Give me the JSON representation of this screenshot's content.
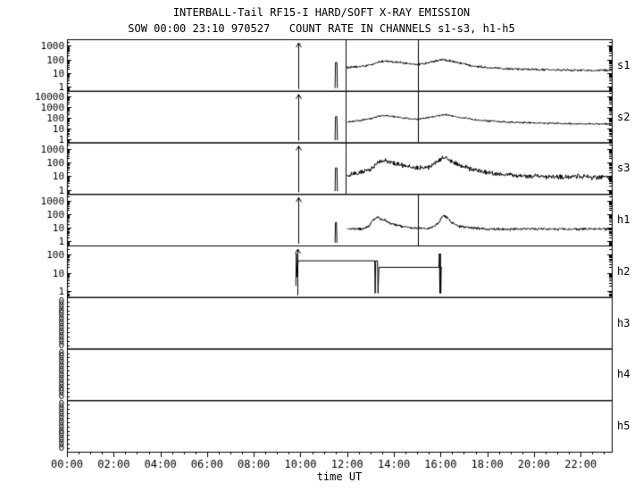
{
  "chart_data": {
    "type": "line",
    "title": "INTERBALL-Tail RF15-I HARD/SOFT X-RAY EMISSION",
    "subtitle": "SOW 00:00 23:10 970527   COUNT RATE IN CHANNELS s1-s3, h1-h5",
    "xlabel": "time UT",
    "ylabel": "COUNT RATE",
    "grid": false,
    "legend": "right-edge panel labels",
    "x_range": [
      0,
      23.33
    ],
    "x_minor_step": 0.5,
    "x_major_ticks": [
      0,
      2,
      4,
      6,
      8,
      10,
      12,
      14,
      16,
      18,
      20,
      22
    ],
    "x_tick_labels": [
      "00:00",
      "02:00",
      "04:00",
      "06:00",
      "08:00",
      "10:00",
      "12:00",
      "14:00",
      "16:00",
      "18:00",
      "20:00",
      "22:00"
    ],
    "trace_color": "#000000",
    "background_color": "#ffffff",
    "panels": [
      {
        "label": "s1",
        "scale": "log",
        "ylim": [
          0.5,
          3000
        ],
        "yticks": [
          1,
          10,
          100,
          1000
        ],
        "noise": 0.1,
        "arrow_spikes": [
          9.9
        ],
        "vlines": [
          11.93,
          15.03
        ],
        "segments": [
          {
            "noisy": false,
            "points": [
              [
                11.48,
                0.8
              ],
              [
                11.5,
                60
              ],
              [
                11.56,
                60
              ],
              [
                11.58,
                0.8
              ]
            ]
          },
          {
            "noisy": true,
            "points": [
              [
                12.0,
                25
              ],
              [
                12.4,
                28
              ],
              [
                12.8,
                33
              ],
              [
                13.1,
                45
              ],
              [
                13.4,
                70
              ],
              [
                13.7,
                75
              ],
              [
                14.0,
                65
              ],
              [
                14.5,
                52
              ],
              [
                15.0,
                42
              ],
              [
                15.4,
                55
              ],
              [
                15.8,
                75
              ],
              [
                16.1,
                100
              ],
              [
                16.4,
                80
              ],
              [
                16.8,
                55
              ],
              [
                17.2,
                40
              ],
              [
                17.6,
                30
              ],
              [
                18.0,
                26
              ],
              [
                18.5,
                23
              ],
              [
                19.0,
                21
              ],
              [
                20.0,
                18
              ],
              [
                21.0,
                17
              ],
              [
                22.0,
                16
              ],
              [
                23.3,
                16
              ]
            ]
          }
        ]
      },
      {
        "label": "s2",
        "scale": "log",
        "ylim": [
          0.5,
          30000
        ],
        "yticks": [
          1,
          10,
          100,
          1000,
          10000
        ],
        "noise": 0.1,
        "arrow_spikes": [
          9.9
        ],
        "vlines": [
          11.93,
          15.03
        ],
        "segments": [
          {
            "noisy": false,
            "points": [
              [
                11.48,
                0.8
              ],
              [
                11.5,
                120
              ],
              [
                11.56,
                120
              ],
              [
                11.58,
                0.8
              ]
            ]
          },
          {
            "noisy": true,
            "points": [
              [
                12.0,
                40
              ],
              [
                12.5,
                50
              ],
              [
                13.0,
                80
              ],
              [
                13.4,
                140
              ],
              [
                13.7,
                150
              ],
              [
                14.0,
                120
              ],
              [
                14.5,
                90
              ],
              [
                15.0,
                70
              ],
              [
                15.4,
                90
              ],
              [
                15.9,
                150
              ],
              [
                16.2,
                190
              ],
              [
                16.5,
                140
              ],
              [
                17.0,
                90
              ],
              [
                17.5,
                62
              ],
              [
                18.0,
                48
              ],
              [
                19.0,
                36
              ],
              [
                20.0,
                31
              ],
              [
                21.0,
                28
              ],
              [
                22.0,
                26
              ],
              [
                23.3,
                25
              ]
            ]
          }
        ]
      },
      {
        "label": "s3",
        "scale": "log",
        "ylim": [
          0.5,
          3000
        ],
        "yticks": [
          1,
          10,
          100,
          1000
        ],
        "noise": 0.22,
        "arrow_spikes": [
          9.9
        ],
        "vlines": [
          11.93
        ],
        "segments": [
          {
            "noisy": false,
            "points": [
              [
                11.48,
                0.8
              ],
              [
                11.5,
                40
              ],
              [
                11.56,
                40
              ],
              [
                11.58,
                0.8
              ]
            ]
          },
          {
            "noisy": true,
            "points": [
              [
                12.0,
                12
              ],
              [
                12.5,
                16
              ],
              [
                13.0,
                35
              ],
              [
                13.4,
                110
              ],
              [
                13.7,
                130
              ],
              [
                14.0,
                90
              ],
              [
                14.5,
                55
              ],
              [
                15.0,
                38
              ],
              [
                15.5,
                45
              ],
              [
                16.0,
                180
              ],
              [
                16.2,
                220
              ],
              [
                16.5,
                110
              ],
              [
                16.9,
                55
              ],
              [
                17.3,
                32
              ],
              [
                17.7,
                22
              ],
              [
                18.1,
                16
              ],
              [
                19.0,
                12
              ],
              [
                20.0,
                10
              ],
              [
                21.0,
                9
              ],
              [
                22.0,
                9
              ],
              [
                23.3,
                8
              ]
            ]
          }
        ]
      },
      {
        "label": "h1",
        "scale": "log",
        "ylim": [
          0.5,
          3000
        ],
        "yticks": [
          1,
          10,
          100,
          1000
        ],
        "noise": 0.12,
        "arrow_spikes": [
          9.9
        ],
        "vlines": [
          15.03
        ],
        "segments": [
          {
            "noisy": false,
            "points": [
              [
                11.48,
                0.8
              ],
              [
                11.5,
                25
              ],
              [
                11.54,
                25
              ],
              [
                11.56,
                0.8
              ]
            ]
          },
          {
            "noisy": true,
            "points": [
              [
                12.0,
                8
              ],
              [
                12.6,
                8
              ],
              [
                12.9,
                12
              ],
              [
                13.1,
                40
              ],
              [
                13.3,
                55
              ],
              [
                13.6,
                35
              ],
              [
                13.9,
                20
              ],
              [
                14.3,
                13
              ],
              [
                14.7,
                10
              ],
              [
                15.0,
                9
              ],
              [
                15.5,
                9
              ],
              [
                15.9,
                20
              ],
              [
                16.1,
                80
              ],
              [
                16.25,
                60
              ],
              [
                16.5,
                22
              ],
              [
                16.8,
                13
              ],
              [
                17.2,
                10
              ],
              [
                18.0,
                8
              ],
              [
                19.0,
                8
              ],
              [
                20.0,
                8
              ],
              [
                21.0,
                8
              ],
              [
                22.0,
                8
              ],
              [
                23.3,
                8
              ]
            ]
          }
        ]
      },
      {
        "label": "h2",
        "scale": "log",
        "ylim": [
          0.5,
          300
        ],
        "yticks": [
          1,
          10,
          100
        ],
        "noise": 0,
        "arrow_spikes": [
          9.85
        ],
        "vlines": [],
        "segments": [
          {
            "noisy": false,
            "points": [
              [
                9.8,
                2
              ],
              [
                9.82,
                110
              ],
              [
                9.86,
                6
              ],
              [
                9.9,
                45
              ]
            ]
          },
          {
            "noisy": false,
            "points": [
              [
                9.9,
                45
              ],
              [
                13.18,
                45
              ],
              [
                13.2,
                0.8
              ],
              [
                13.22,
                45
              ],
              [
                13.3,
                45
              ],
              [
                13.32,
                0.8
              ],
              [
                13.36,
                20
              ],
              [
                15.93,
                20
              ],
              [
                15.95,
                110
              ],
              [
                15.97,
                0.8
              ],
              [
                15.99,
                110
              ],
              [
                16.01,
                0.8
              ],
              [
                16.03,
                20
              ],
              [
                16.06,
                20
              ]
            ]
          }
        ]
      },
      {
        "label": "h3",
        "scale": "zeros",
        "zero_labels": 11,
        "segments": []
      },
      {
        "label": "h4",
        "scale": "zeros",
        "zero_labels": 11,
        "segments": []
      },
      {
        "label": "h5",
        "scale": "zeros",
        "zero_labels": 11,
        "segments": []
      }
    ]
  }
}
